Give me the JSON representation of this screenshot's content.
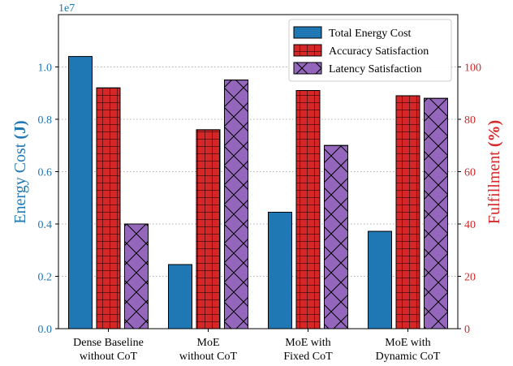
{
  "chart_data": {
    "type": "bar",
    "categories": [
      [
        "Dense Baseline",
        "without CoT"
      ],
      [
        "MoE",
        "without CoT"
      ],
      [
        "MoE with",
        "Fixed CoT"
      ],
      [
        "MoE with",
        "Dynamic CoT"
      ]
    ],
    "series": [
      {
        "name": "Total Energy Cost",
        "axis": "left",
        "color": "#1f77b4",
        "hatch": "none",
        "values": [
          10400000,
          2450000,
          4450000,
          3720000
        ]
      },
      {
        "name": "Accuracy Satisfaction",
        "axis": "right",
        "color": "#d62728",
        "hatch": "grid",
        "values": [
          92,
          76,
          91,
          89
        ]
      },
      {
        "name": "Latency Satisfaction",
        "axis": "right",
        "color": "#9467bd",
        "hatch": "cross",
        "values": [
          40,
          95,
          70,
          88
        ]
      }
    ],
    "left_axis": {
      "label_main": "Energy Cost ",
      "label_bold": "(J)",
      "color": "#1f77b4",
      "ylim": [
        0,
        12000000
      ],
      "ticks": [
        0,
        2000000,
        4000000,
        6000000,
        8000000,
        10000000
      ],
      "tick_labels": [
        "0.0",
        "0.2",
        "0.4",
        "0.6",
        "0.8",
        "1.0"
      ],
      "offset_label": "1e7"
    },
    "right_axis": {
      "label_main": "Fulfillment ",
      "label_bold": "(%)",
      "color": "#d62728",
      "ylim": [
        0,
        120
      ],
      "ticks": [
        0,
        20,
        40,
        60,
        80,
        100
      ],
      "tick_labels": [
        "0",
        "20",
        "40",
        "60",
        "80",
        "100"
      ]
    },
    "grid": "horizontal dotted",
    "legend_position": "top-right"
  }
}
